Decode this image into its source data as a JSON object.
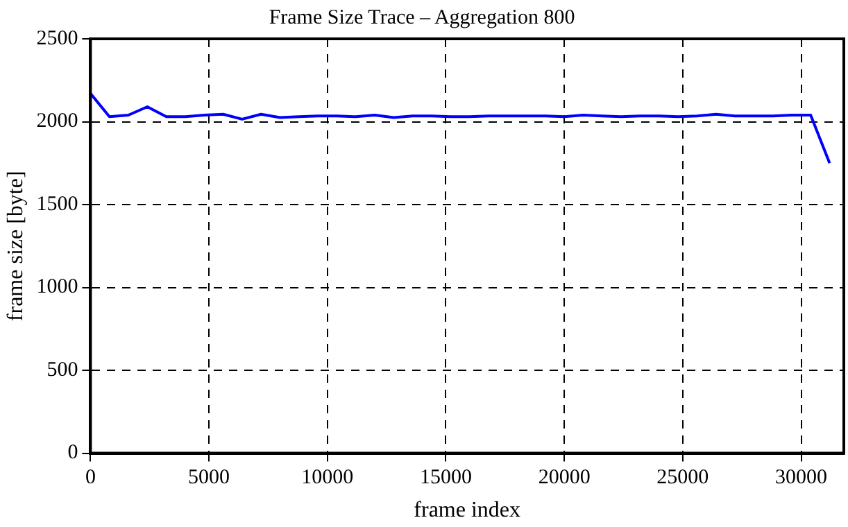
{
  "chart_data": {
    "type": "line",
    "title": "Frame Size Trace – Aggregation 800",
    "xlabel": "frame index",
    "ylabel": "frame size [byte]",
    "x": [
      0,
      800,
      1600,
      2400,
      3200,
      4000,
      4800,
      5600,
      6400,
      7200,
      8000,
      8800,
      9600,
      10400,
      11200,
      12000,
      12800,
      13600,
      14400,
      15200,
      16000,
      16800,
      17600,
      18400,
      19200,
      20000,
      20800,
      21600,
      22400,
      23200,
      24000,
      24800,
      25600,
      26400,
      27200,
      28000,
      28800,
      29600,
      30400,
      31200
    ],
    "series": [
      {
        "color": "#0000ff",
        "values": [
          2170,
          2030,
          2040,
          2090,
          2030,
          2030,
          2040,
          2045,
          2015,
          2045,
          2025,
          2030,
          2035,
          2035,
          2030,
          2040,
          2025,
          2035,
          2035,
          2030,
          2030,
          2035,
          2035,
          2035,
          2035,
          2030,
          2040,
          2035,
          2030,
          2035,
          2035,
          2030,
          2035,
          2045,
          2035,
          2035,
          2035,
          2040,
          2040,
          1750
        ]
      }
    ],
    "xlim": [
      0,
      31800
    ],
    "xticks": [
      0,
      5000,
      10000,
      15000,
      20000,
      25000,
      30000
    ],
    "ylim": [
      0,
      2500
    ],
    "yticks": [
      0,
      500,
      1000,
      1500,
      2000,
      2500
    ],
    "grid": true,
    "legend": false,
    "marker": "none",
    "line_style": "solid"
  }
}
